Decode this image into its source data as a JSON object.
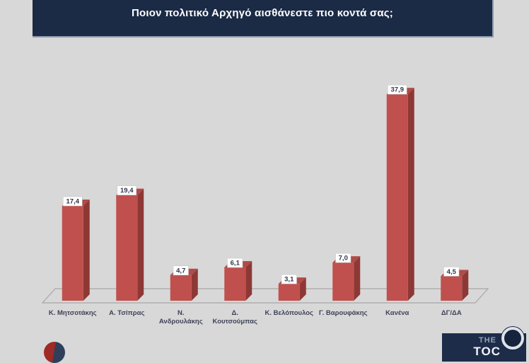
{
  "title": "Ποιον πολιτικό Αρχηγό αισθάνεστε πιο κοντά σας;",
  "colors": {
    "background": "#d8d8d8",
    "title_bar": "#1b2a45",
    "title_text": "#ffffff",
    "bar_front": "#c0504d",
    "bar_side": "#8e3836",
    "bar_top": "#b04b48",
    "floor_line": "#a6a6a6",
    "value_label_bg": "#ffffff",
    "value_label_text": "#333646",
    "category_text": "#3f4257"
  },
  "chart_data": {
    "type": "bar",
    "style": "3d-column",
    "title": "Ποιον πολιτικό Αρχηγό αισθάνεστε πιο κοντά σας;",
    "categories": [
      "Κ. Μητσοτάκης",
      "Α. Τσίπρας",
      "Ν. Ανδρουλάκης",
      "Δ. Κουτσούμπας",
      "Κ. Βελόπουλος",
      "Γ. Βαρουφάκης",
      "Κανένα",
      "ΔΓ/ΔΑ"
    ],
    "category_lines": [
      [
        "Κ. Μητσοτάκης"
      ],
      [
        "Α. Τσίπρας"
      ],
      [
        "Ν.",
        "Ανδρουλάκης"
      ],
      [
        "Δ.",
        "Κουτσούμπας"
      ],
      [
        "Κ. Βελόπουλος"
      ],
      [
        "Γ. Βαρουφάκης"
      ],
      [
        "Κανένα"
      ],
      [
        "ΔΓ/ΔΑ"
      ]
    ],
    "values": [
      17.4,
      19.4,
      4.7,
      6.1,
      3.1,
      7.0,
      37.9,
      4.5
    ],
    "value_labels": [
      "17,4",
      "19,4",
      "4,7",
      "6,1",
      "3,1",
      "7,0",
      "37,9",
      "4,5"
    ],
    "xlabel": "",
    "ylabel": "",
    "ylim": [
      0,
      40
    ],
    "grid": false,
    "legend": false
  },
  "footer": {
    "right_logo_line1": "THE",
    "right_logo_line2": "TOC"
  }
}
